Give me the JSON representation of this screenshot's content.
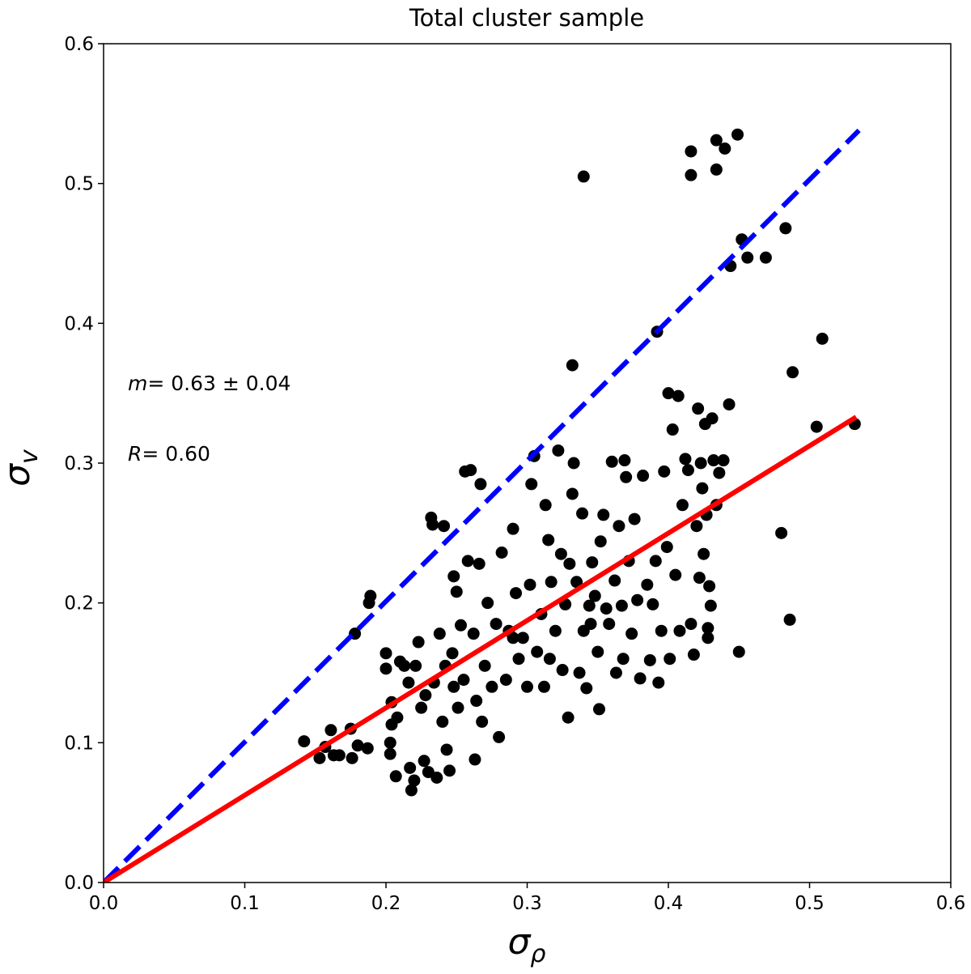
{
  "chart_data": {
    "type": "scatter",
    "title": "Total cluster sample",
    "xlabel": {
      "symbol": "σ",
      "subscript": "ρ"
    },
    "ylabel": {
      "symbol": "σ",
      "subscript": "v"
    },
    "annotations": [
      {
        "symbol": "m",
        "text": "= 0.63 ± 0.04"
      },
      {
        "symbol": "R",
        "text": "= 0.60"
      }
    ],
    "xlim": [
      0,
      0.6
    ],
    "ylim": [
      0,
      0.6
    ],
    "xticks": [
      {
        "value": 0,
        "label": "0.0"
      },
      0.1,
      0.2,
      0.3,
      0.4,
      0.5,
      0.6
    ],
    "yticks": [
      {
        "value": 0,
        "label": "0.0"
      },
      0.1,
      0.2,
      0.3,
      0.4,
      0.5,
      0.6
    ],
    "color": "#000000",
    "x": [
      0.416,
      0.416,
      0.434,
      0.44,
      0.449,
      0.434,
      0.34,
      0.452,
      0.456,
      0.469,
      0.444,
      0.483,
      0.392,
      0.509,
      0.332,
      0.488,
      0.505,
      0.532,
      0.48,
      0.486,
      0.45,
      0.142,
      0.153,
      0.157,
      0.161,
      0.163,
      0.167,
      0.175,
      0.176,
      0.18,
      0.187,
      0.178,
      0.188,
      0.189,
      0.2,
      0.2,
      0.204,
      0.204,
      0.203,
      0.203,
      0.207,
      0.208,
      0.21,
      0.213,
      0.216,
      0.217,
      0.218,
      0.22,
      0.221,
      0.223,
      0.225,
      0.227,
      0.228,
      0.23,
      0.232,
      0.233,
      0.234,
      0.236,
      0.238,
      0.24,
      0.242,
      0.243,
      0.245,
      0.247,
      0.248,
      0.248,
      0.25,
      0.251,
      0.253,
      0.255,
      0.256,
      0.258,
      0.26,
      0.262,
      0.263,
      0.264,
      0.266,
      0.267,
      0.268,
      0.27,
      0.272,
      0.275,
      0.278,
      0.28,
      0.282,
      0.285,
      0.287,
      0.29,
      0.292,
      0.294,
      0.297,
      0.3,
      0.302,
      0.303,
      0.305,
      0.307,
      0.31,
      0.312,
      0.313,
      0.315,
      0.317,
      0.32,
      0.322,
      0.324,
      0.325,
      0.327,
      0.329,
      0.33,
      0.332,
      0.333,
      0.335,
      0.337,
      0.339,
      0.34,
      0.342,
      0.344,
      0.346,
      0.348,
      0.35,
      0.351,
      0.352,
      0.354,
      0.356,
      0.358,
      0.36,
      0.362,
      0.363,
      0.365,
      0.367,
      0.369,
      0.37,
      0.372,
      0.374,
      0.376,
      0.378,
      0.38,
      0.382,
      0.385,
      0.387,
      0.389,
      0.391,
      0.393,
      0.395,
      0.397,
      0.399,
      0.4,
      0.401,
      0.403,
      0.405,
      0.407,
      0.408,
      0.41,
      0.412,
      0.414,
      0.416,
      0.418,
      0.42,
      0.421,
      0.422,
      0.423,
      0.424,
      0.425,
      0.426,
      0.427,
      0.428,
      0.429,
      0.43,
      0.431,
      0.432,
      0.434,
      0.436,
      0.439,
      0.443,
      0.428,
      0.241,
      0.29,
      0.316,
      0.345,
      0.368
    ],
    "values": [
      0.523,
      0.506,
      0.531,
      0.525,
      0.535,
      0.51,
      0.505,
      0.46,
      0.447,
      0.447,
      0.441,
      0.468,
      0.394,
      0.389,
      0.37,
      0.365,
      0.326,
      0.328,
      0.25,
      0.188,
      0.165,
      0.101,
      0.089,
      0.097,
      0.109,
      0.091,
      0.091,
      0.11,
      0.089,
      0.098,
      0.096,
      0.178,
      0.2,
      0.205,
      0.164,
      0.153,
      0.129,
      0.113,
      0.1,
      0.092,
      0.076,
      0.118,
      0.158,
      0.155,
      0.143,
      0.082,
      0.066,
      0.073,
      0.155,
      0.172,
      0.125,
      0.087,
      0.134,
      0.079,
      0.261,
      0.256,
      0.143,
      0.075,
      0.178,
      0.115,
      0.155,
      0.095,
      0.08,
      0.164,
      0.14,
      0.219,
      0.208,
      0.125,
      0.184,
      0.145,
      0.294,
      0.23,
      0.295,
      0.178,
      0.088,
      0.13,
      0.228,
      0.285,
      0.115,
      0.155,
      0.2,
      0.14,
      0.185,
      0.104,
      0.236,
      0.145,
      0.18,
      0.253,
      0.207,
      0.16,
      0.175,
      0.14,
      0.213,
      0.285,
      0.305,
      0.165,
      0.192,
      0.14,
      0.27,
      0.245,
      0.215,
      0.18,
      0.309,
      0.235,
      0.152,
      0.199,
      0.118,
      0.228,
      0.278,
      0.3,
      0.215,
      0.15,
      0.264,
      0.18,
      0.139,
      0.198,
      0.229,
      0.205,
      0.165,
      0.124,
      0.244,
      0.263,
      0.196,
      0.185,
      0.301,
      0.216,
      0.15,
      0.255,
      0.198,
      0.302,
      0.29,
      0.23,
      0.178,
      0.26,
      0.202,
      0.146,
      0.291,
      0.213,
      0.159,
      0.199,
      0.23,
      0.143,
      0.18,
      0.294,
      0.24,
      0.35,
      0.16,
      0.324,
      0.22,
      0.348,
      0.18,
      0.27,
      0.303,
      0.295,
      0.185,
      0.163,
      0.255,
      0.339,
      0.218,
      0.3,
      0.282,
      0.235,
      0.328,
      0.263,
      0.175,
      0.212,
      0.198,
      0.332,
      0.302,
      0.27,
      0.293,
      0.302,
      0.342,
      0.182,
      0.255,
      0.175,
      0.16,
      0.185,
      0.16
    ],
    "lines": [
      {
        "color": "#0000ff",
        "dashed": true,
        "x": [
          0,
          0.535
        ],
        "values": [
          0,
          0.538
        ]
      },
      {
        "color": "#ff0000",
        "dashed": false,
        "x": [
          0,
          0.533
        ],
        "values": [
          0,
          0.333
        ]
      }
    ]
  }
}
